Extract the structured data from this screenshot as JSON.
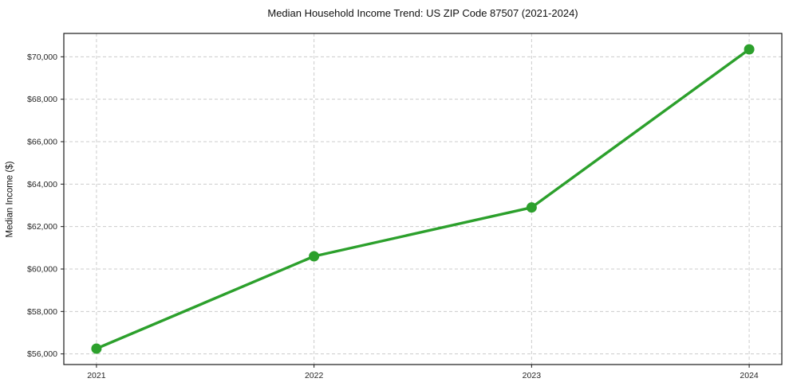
{
  "chart_data": {
    "type": "line",
    "title": "Median Household Income Trend: US ZIP Code 87507 (2021-2024)",
    "xlabel": "",
    "ylabel": "Median Income ($)",
    "categories": [
      "2021",
      "2022",
      "2023",
      "2024"
    ],
    "series": [
      {
        "name": "Median Household Income",
        "values": [
          56250,
          60600,
          62900,
          70350
        ]
      }
    ],
    "yticks": [
      56000,
      58000,
      60000,
      62000,
      64000,
      66000,
      68000,
      70000
    ],
    "ytick_prefix": "$",
    "ylim": [
      55500,
      71100
    ],
    "grid": true,
    "grid_style": "dashed",
    "legend": "none",
    "colors": {
      "line": "#2ca02c",
      "marker": "#2ca02c",
      "grid": "#cccccc",
      "spine": "#1a1a1a",
      "tick_label": "#262626",
      "background": "#ffffff"
    }
  }
}
